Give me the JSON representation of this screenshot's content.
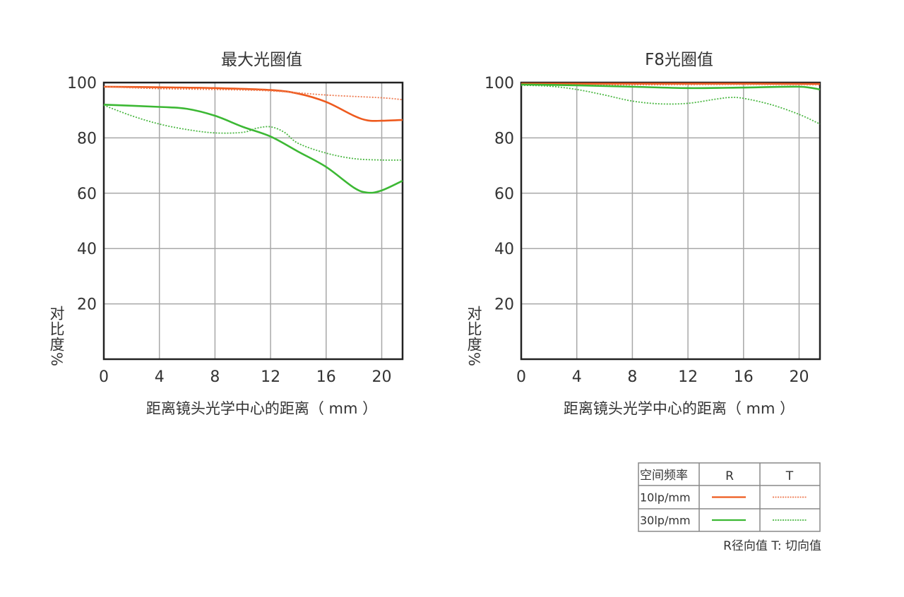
{
  "colors": {
    "r10": "#ee5a1e",
    "t10": "#ee7a50",
    "r30": "#3cb834",
    "t30": "#4cb844",
    "grid": "#a8a8a8",
    "axis": "#222222"
  },
  "chart_data": [
    {
      "type": "line",
      "title": "最大光圈值",
      "xlabel": "距离镜头光学中心的距离（ mm ）",
      "ylabel": "对比度%",
      "xlim": [
        0,
        21.5
      ],
      "ylim": [
        0,
        100
      ],
      "xticks": [
        "0",
        "4",
        "8",
        "12",
        "16",
        "20"
      ],
      "yticks": [
        "20",
        "40",
        "60",
        "80",
        "100"
      ],
      "grid": true,
      "series": [
        {
          "key": "r10",
          "x": [
            0,
            4,
            8,
            12,
            14,
            16,
            18,
            19,
            20,
            21.5
          ],
          "y": [
            98.5,
            98.3,
            98,
            97.3,
            96,
            93,
            88,
            86.3,
            86.2,
            86.5
          ]
        },
        {
          "key": "t10",
          "x": [
            0,
            4,
            8,
            12,
            16,
            20,
            21.5
          ],
          "y": [
            98.5,
            97.8,
            97.5,
            97,
            95.5,
            94.5,
            93.8
          ]
        },
        {
          "key": "r30",
          "x": [
            0,
            4,
            6,
            8,
            10,
            12,
            14,
            16,
            18,
            19,
            20,
            21.5
          ],
          "y": [
            92,
            91.2,
            90.5,
            88,
            84,
            80.5,
            75,
            69.5,
            62,
            60.2,
            61,
            64.5
          ]
        },
        {
          "key": "t30",
          "x": [
            0,
            2,
            4,
            6,
            8,
            10,
            11,
            12,
            13,
            14,
            16,
            18,
            20,
            21.5
          ],
          "y": [
            91.8,
            88,
            85,
            83,
            81.8,
            82,
            83.5,
            84,
            82,
            78,
            74.5,
            72.5,
            72,
            72
          ]
        }
      ]
    },
    {
      "type": "line",
      "title": "F8光圈值",
      "xlabel": "距离镜头光学中心的距离（ mm ）",
      "ylabel": "对比度%",
      "xlim": [
        0,
        21.5
      ],
      "ylim": [
        0,
        100
      ],
      "xticks": [
        "0",
        "4",
        "8",
        "12",
        "16",
        "20"
      ],
      "yticks": [
        "20",
        "40",
        "60",
        "80",
        "100"
      ],
      "grid": true,
      "series": [
        {
          "key": "r10",
          "x": [
            0,
            8,
            16,
            21.5
          ],
          "y": [
            99.6,
            99.6,
            99.6,
            99.5
          ]
        },
        {
          "key": "t10",
          "x": [
            0,
            8,
            16,
            21.5
          ],
          "y": [
            99.3,
            99.2,
            99.3,
            99.2
          ]
        },
        {
          "key": "r30",
          "x": [
            0,
            4,
            8,
            12,
            16,
            20,
            21.5
          ],
          "y": [
            99.3,
            99,
            98.5,
            98,
            98.2,
            98.5,
            97.5
          ]
        },
        {
          "key": "t30",
          "x": [
            0,
            2,
            4,
            6,
            8,
            10,
            12,
            14,
            15,
            16,
            18,
            20,
            21.5
          ],
          "y": [
            99,
            98.7,
            97.5,
            95.5,
            93.3,
            92.3,
            92.5,
            94,
            94.6,
            94.3,
            92,
            88.5,
            85
          ]
        }
      ]
    }
  ],
  "legend": {
    "header": [
      "空间频率",
      "R",
      "T"
    ],
    "rows": [
      {
        "label": "10lp/mm",
        "r": "r10",
        "t": "t10"
      },
      {
        "label": "30lp/mm",
        "r": "r30",
        "t": "t30"
      }
    ],
    "note": "R径向值 T:  切向值"
  }
}
